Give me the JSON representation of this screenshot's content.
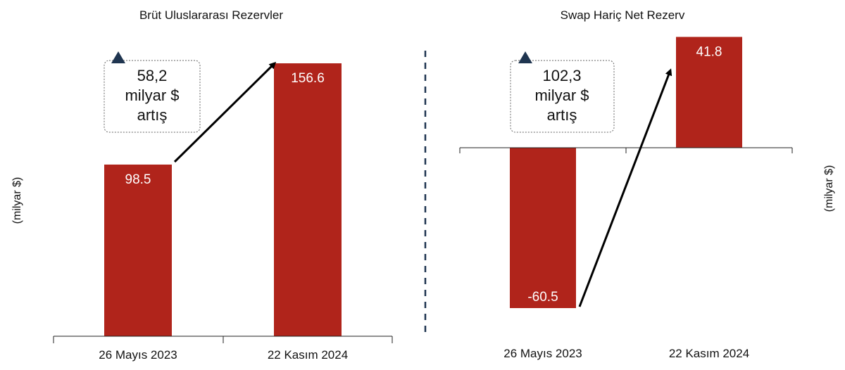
{
  "colors": {
    "bar": "#b0241b",
    "callout_triangle": "#1f3550",
    "divider": "#1f3550",
    "axis": "#222222",
    "bar_label": "#ffffff"
  },
  "chart_data": [
    {
      "type": "bar",
      "title": "Brüt Uluslararası Rezervler",
      "ylabel": "(milyar $)",
      "categories": [
        "26 Mayıs 2023",
        "22 Kasım 2024"
      ],
      "values": [
        98.5,
        156.6
      ],
      "value_labels": [
        "98.5",
        "156.6"
      ],
      "ylim": [
        0,
        160
      ],
      "grid": false,
      "annotation": {
        "icon": "up-triangle-icon",
        "lines": [
          "58,2",
          "milyar $",
          "artış"
        ]
      }
    },
    {
      "type": "bar",
      "title": "Swap Hariç Net Rezerv",
      "ylabel": "(milyar $)",
      "categories": [
        "26 Mayıs 2023",
        "22 Kasım 2024"
      ],
      "values": [
        -60.5,
        41.8
      ],
      "value_labels": [
        "-60.5",
        "41.8"
      ],
      "ylim": [
        -65,
        45
      ],
      "grid": false,
      "annotation": {
        "icon": "up-triangle-icon",
        "lines": [
          "102,3",
          "milyar $",
          "artış"
        ]
      }
    }
  ]
}
